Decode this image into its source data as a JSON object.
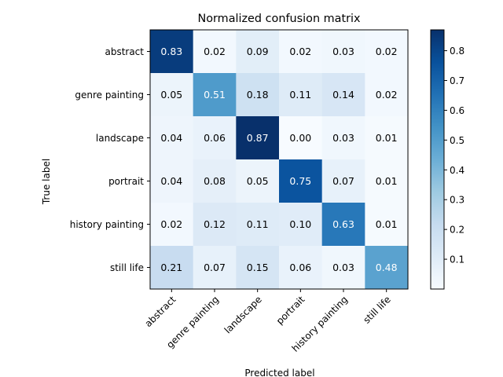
{
  "chart_data": {
    "type": "heatmap",
    "title": "Normalized confusion matrix",
    "xlabel": "Predicted label",
    "ylabel": "True label",
    "row_labels": [
      "abstract",
      "genre painting",
      "landscape",
      "portrait",
      "history painting",
      "still life"
    ],
    "col_labels": [
      "abstract",
      "genre painting",
      "landscape",
      "portrait",
      "history painting",
      "still life"
    ],
    "values": [
      [
        0.83,
        0.02,
        0.09,
        0.02,
        0.03,
        0.02
      ],
      [
        0.05,
        0.51,
        0.18,
        0.11,
        0.14,
        0.02
      ],
      [
        0.04,
        0.06,
        0.87,
        0.0,
        0.03,
        0.01
      ],
      [
        0.04,
        0.08,
        0.05,
        0.75,
        0.07,
        0.01
      ],
      [
        0.02,
        0.12,
        0.11,
        0.1,
        0.63,
        0.01
      ],
      [
        0.21,
        0.07,
        0.15,
        0.06,
        0.03,
        0.48
      ]
    ],
    "colormap": "Blues",
    "value_range": [
      0.0,
      0.87
    ],
    "colorbar": {
      "ticks": [
        0.1,
        0.2,
        0.3,
        0.4,
        0.5,
        0.6,
        0.7,
        0.8
      ],
      "tick_labels": [
        "0.1",
        "0.2",
        "0.3",
        "0.4",
        "0.5",
        "0.6",
        "0.7",
        "0.8"
      ]
    },
    "x_tick_rotation": 45,
    "grid": false
  }
}
